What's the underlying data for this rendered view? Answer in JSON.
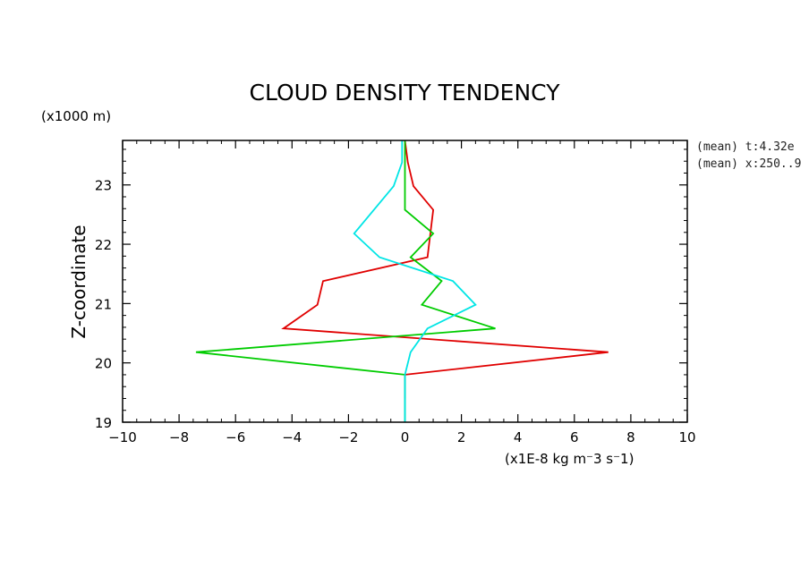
{
  "chart_data": {
    "type": "line",
    "title": "CLOUD DENSITY TENDENCY",
    "xlabel": "(x1E-8 kg m⁻3 s⁻1)",
    "ylabel": "Z-coordinate",
    "y_unit": "(x1000 m)",
    "annotations": [
      "(mean) t:4.32e",
      "(mean) x:250..9"
    ],
    "xlim": [
      -10,
      10
    ],
    "ylim": [
      19,
      23.75
    ],
    "x_ticks": [
      -10,
      -8,
      -6,
      -4,
      -2,
      0,
      2,
      4,
      6,
      8,
      10
    ],
    "x_tick_labels": [
      "−10",
      "−8",
      "−6",
      "−4",
      "−2",
      "0",
      "2",
      "4",
      "6",
      "8",
      "10"
    ],
    "y_ticks": [
      19,
      20,
      21,
      22,
      23
    ],
    "y_tick_labels": [
      "19",
      "20",
      "21",
      "22",
      "23"
    ],
    "grid": false,
    "series": [
      {
        "color": "#e00000",
        "points": [
          [
            0,
            19.4
          ],
          [
            0,
            19.8
          ],
          [
            7.2,
            20.18
          ],
          [
            -4.3,
            20.58
          ],
          [
            -3.1,
            20.98
          ],
          [
            -2.9,
            21.38
          ],
          [
            0.8,
            21.78
          ],
          [
            1,
            22.58
          ],
          [
            0.3,
            22.98
          ],
          [
            0.1,
            23.38
          ],
          [
            0,
            23.75
          ]
        ]
      },
      {
        "color": "#00cc00",
        "points": [
          [
            0,
            19
          ],
          [
            0,
            19.8
          ],
          [
            -7.4,
            20.18
          ],
          [
            3.2,
            20.58
          ],
          [
            0.6,
            20.98
          ],
          [
            1.3,
            21.38
          ],
          [
            0.2,
            21.78
          ],
          [
            1,
            22.18
          ],
          [
            0,
            22.58
          ],
          [
            0,
            23.75
          ]
        ]
      },
      {
        "color": "#00e5e5",
        "points": [
          [
            0,
            19
          ],
          [
            0,
            19.8
          ],
          [
            0.2,
            20.18
          ],
          [
            0.8,
            20.58
          ],
          [
            2.5,
            20.98
          ],
          [
            1.7,
            21.38
          ],
          [
            -0.9,
            21.78
          ],
          [
            -1.8,
            22.18
          ],
          [
            -0.4,
            22.98
          ],
          [
            -0.1,
            23.38
          ],
          [
            -0.1,
            23.75
          ]
        ]
      }
    ]
  }
}
